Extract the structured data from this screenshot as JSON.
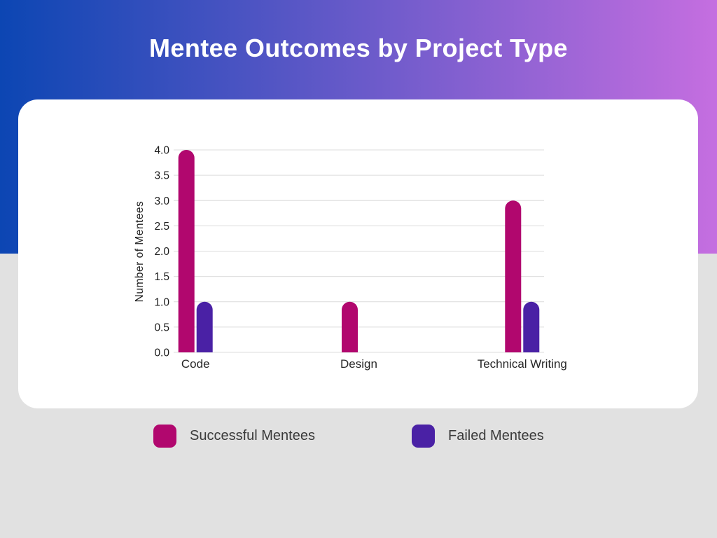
{
  "header": {
    "title": "Mentee Outcomes by Project Type"
  },
  "theme": {
    "gradient_start": "#0C46B3",
    "gradient_end": "#C56EE0",
    "page_background": "#E1E1E1",
    "card_background": "#FFFFFF",
    "grid_color": "#DCDCDC",
    "axis_text_color": "#1E1E1E",
    "category_text_color": "#262626",
    "legend_text_color": "#3A3A3A"
  },
  "chart_data": {
    "type": "bar",
    "title": "Mentee Outcomes by Project Type",
    "categories": [
      "Code",
      "Design",
      "Technical Writing"
    ],
    "series": [
      {
        "name": "Successful Mentees",
        "color": "#B1076E",
        "values": [
          4,
          1,
          3
        ]
      },
      {
        "name": "Failed Mentees",
        "color": "#4A21A5",
        "values": [
          1,
          0,
          1
        ]
      }
    ],
    "xlabel": "",
    "ylabel": "Number of Mentees",
    "ylim": [
      0,
      4.0
    ],
    "ytick_step": 0.5,
    "ytick_labels": [
      "0.0",
      "0.5",
      "1.0",
      "1.5",
      "2.0",
      "2.5",
      "3.0",
      "3.5",
      "4.0"
    ],
    "grid": true,
    "gridlines": "horizontal",
    "legend_position": "bottom",
    "bar_cap": "rounded-top"
  }
}
